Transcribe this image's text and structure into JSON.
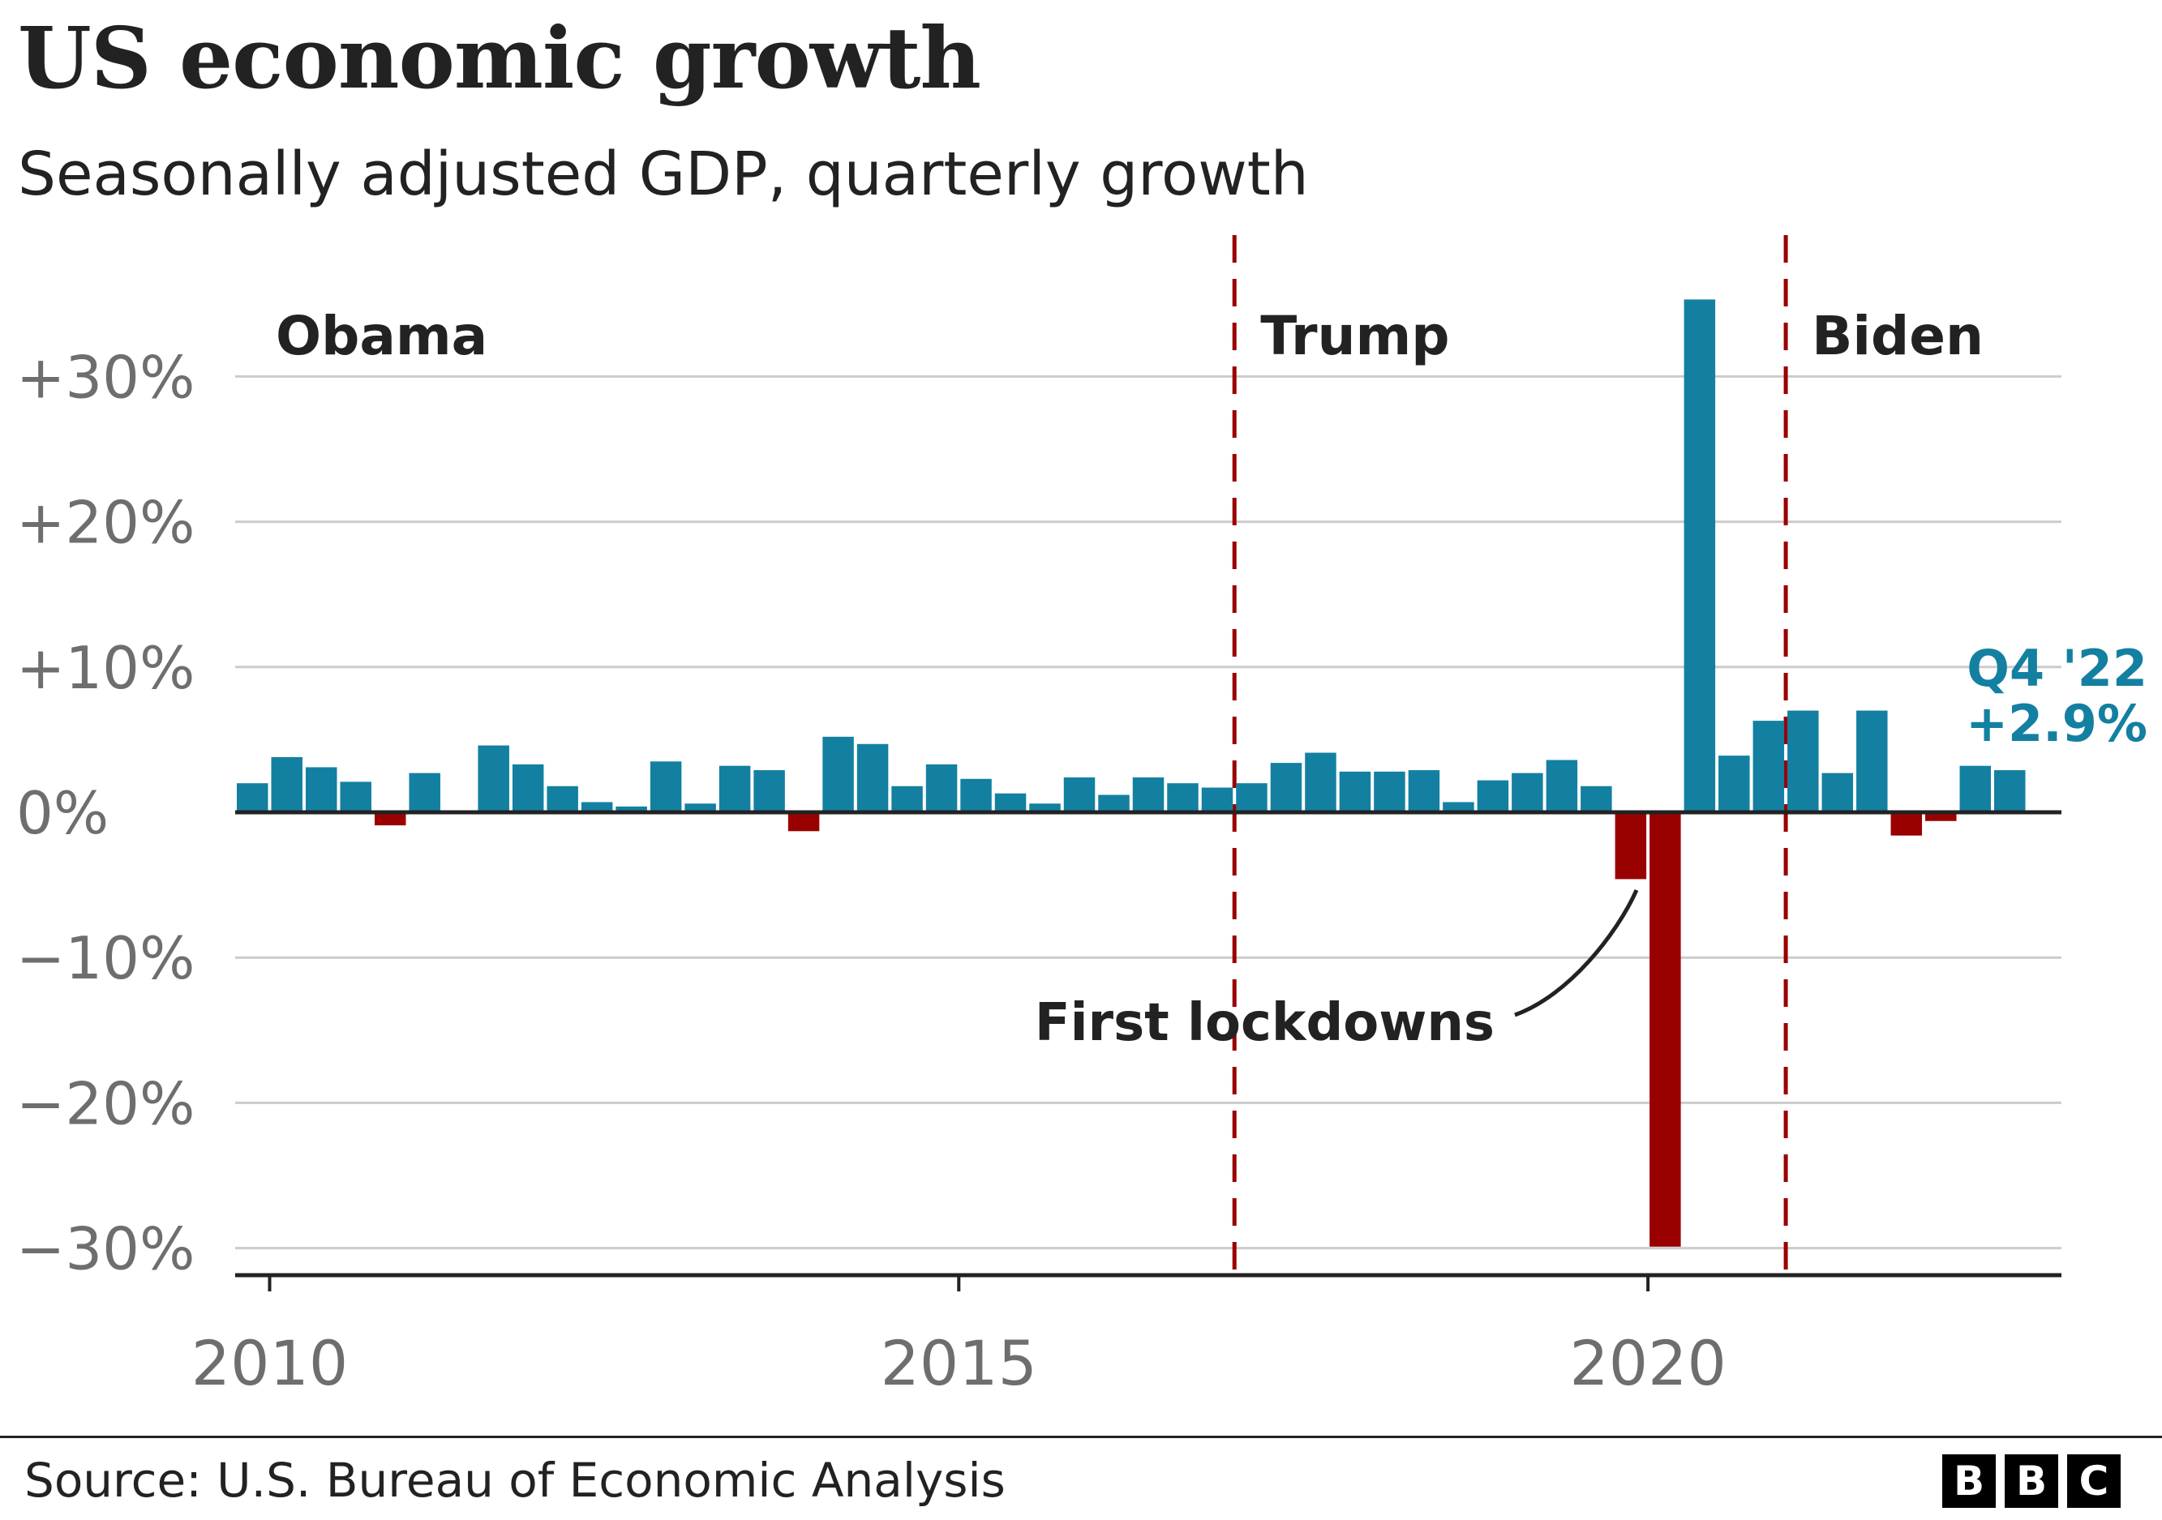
{
  "header": {
    "title": "US economic growth",
    "subtitle": "Seasonally adjusted GDP, quarterly growth"
  },
  "footer": {
    "source": "Source: U.S. Bureau of Economic Analysis",
    "logo_letters": [
      "B",
      "B",
      "C"
    ]
  },
  "colors": {
    "positive": "#1380A1",
    "negative": "#990000",
    "grid": "#cccccc",
    "axis": "#222222",
    "tick_label": "#6e6e6e",
    "era_line": "#990000",
    "highlight_label": "#1380A1"
  },
  "chart_data": {
    "type": "bar",
    "title": "US economic growth",
    "subtitle": "Seasonally adjusted GDP, quarterly growth",
    "x_start": 2009.75,
    "quarter_step": 0.25,
    "values": [
      2.0,
      3.8,
      3.1,
      2.1,
      -0.9,
      2.7,
      0,
      4.6,
      3.3,
      1.8,
      0.7,
      0.4,
      3.5,
      0.6,
      3.2,
      2.9,
      -1.3,
      5.2,
      4.7,
      1.8,
      3.3,
      2.3,
      1.3,
      0.6,
      2.4,
      1.2,
      2.4,
      2.0,
      1.7,
      2.0,
      3.4,
      4.1,
      2.8,
      2.8,
      2.9,
      0.7,
      2.2,
      2.7,
      3.6,
      1.8,
      -4.6,
      -29.9,
      35.3,
      3.9,
      6.3,
      7.0,
      2.7,
      7.0,
      -1.6,
      -0.6,
      3.2,
      2.9
    ],
    "xlabel": "",
    "ylabel": "",
    "ylim": [
      -32,
      36
    ],
    "xlim": [
      2009.75,
      2023
    ],
    "yticks": [
      30,
      20,
      10,
      0,
      -10,
      -20,
      -30
    ],
    "ytick_labels": [
      "+30%",
      "+20%",
      "+10%",
      "0%",
      "−10%",
      "−20%",
      "−30%"
    ],
    "xticks": [
      2010,
      2015,
      2020
    ],
    "xtick_labels": [
      "2010",
      "2015",
      "2020"
    ],
    "grid": true,
    "eras": [
      {
        "label": "Obama",
        "start": 2009.75,
        "line": false
      },
      {
        "label": "Trump",
        "start": 2017.0,
        "line": true
      },
      {
        "label": "Biden",
        "start": 2021.0,
        "line": true
      }
    ],
    "annotations": [
      {
        "text": "First lockdowns",
        "x": 2020.125,
        "y": -5
      },
      {
        "text": "Q4 '22",
        "value_text": "+2.9%",
        "x": 2022.75,
        "y": 2.9
      }
    ]
  }
}
